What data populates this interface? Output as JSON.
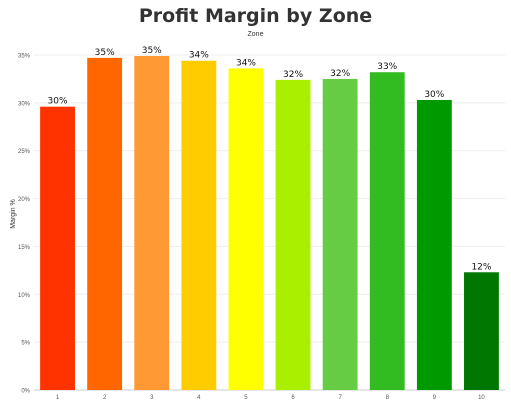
{
  "chart_data": {
    "type": "bar",
    "title": "Profit Margin by Zone",
    "subtitle": "Zone",
    "xlabel": "",
    "ylabel": "Margin %",
    "categories": [
      "1",
      "2",
      "3",
      "4",
      "5",
      "6",
      "7",
      "8",
      "9",
      "10"
    ],
    "values": [
      0.296,
      0.347,
      0.349,
      0.344,
      0.336,
      0.324,
      0.325,
      0.332,
      0.303,
      0.123
    ],
    "data_labels": [
      "30%",
      "35%",
      "35%",
      "34%",
      "34%",
      "32%",
      "32%",
      "33%",
      "30%",
      "12%"
    ],
    "colors": [
      "#ff3300",
      "#ff6600",
      "#ff9933",
      "#ffcc00",
      "#ffff00",
      "#aaee00",
      "#66cc44",
      "#33bb22",
      "#009900",
      "#007700"
    ],
    "yticks": [
      0,
      0.05,
      0.1,
      0.15,
      0.2,
      0.25,
      0.3,
      0.35
    ],
    "ytick_labels": [
      "0%",
      "5%",
      "10%",
      "15%",
      "20%",
      "25%",
      "30%",
      "35%"
    ],
    "ylim": [
      0,
      0.35
    ],
    "grid": true,
    "legend": "none"
  }
}
